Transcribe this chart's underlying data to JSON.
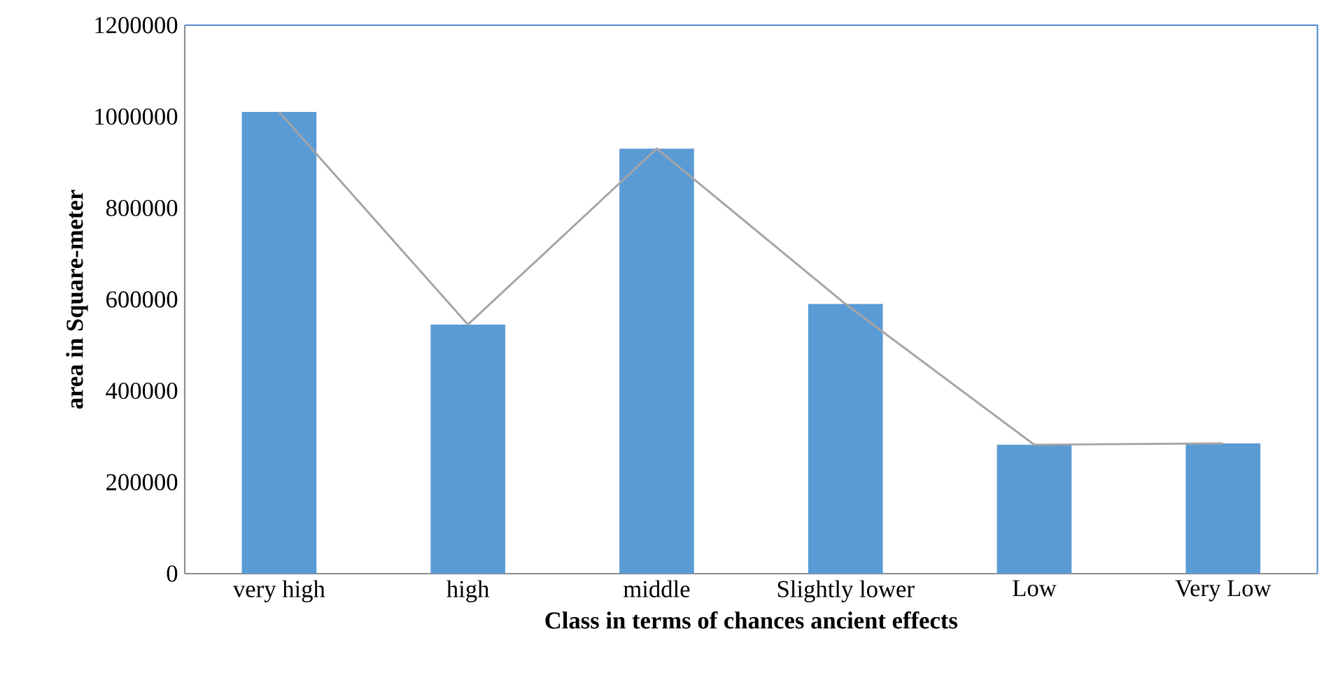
{
  "chart_data": {
    "type": "bar",
    "xlabel": "Class in terms of chances ancient effects",
    "ylabel": "area in Square-meter",
    "categories": [
      "very high",
      "high",
      "middle",
      "Slightly lower",
      "Low",
      "Very Low"
    ],
    "series": [
      {
        "color": "#5b9bd5",
        "values": [
          1010000,
          545000,
          930000,
          590000,
          282000,
          285000
        ]
      },
      {
        "type": "line",
        "color": "#a5a5a5",
        "values": [
          1010000,
          545000,
          930000,
          590000,
          282000,
          285000
        ]
      }
    ],
    "ylim": [
      0,
      1200000
    ],
    "yticks": [
      0,
      200000,
      400000,
      600000,
      800000,
      1000000,
      1200000
    ],
    "grid": false
  }
}
